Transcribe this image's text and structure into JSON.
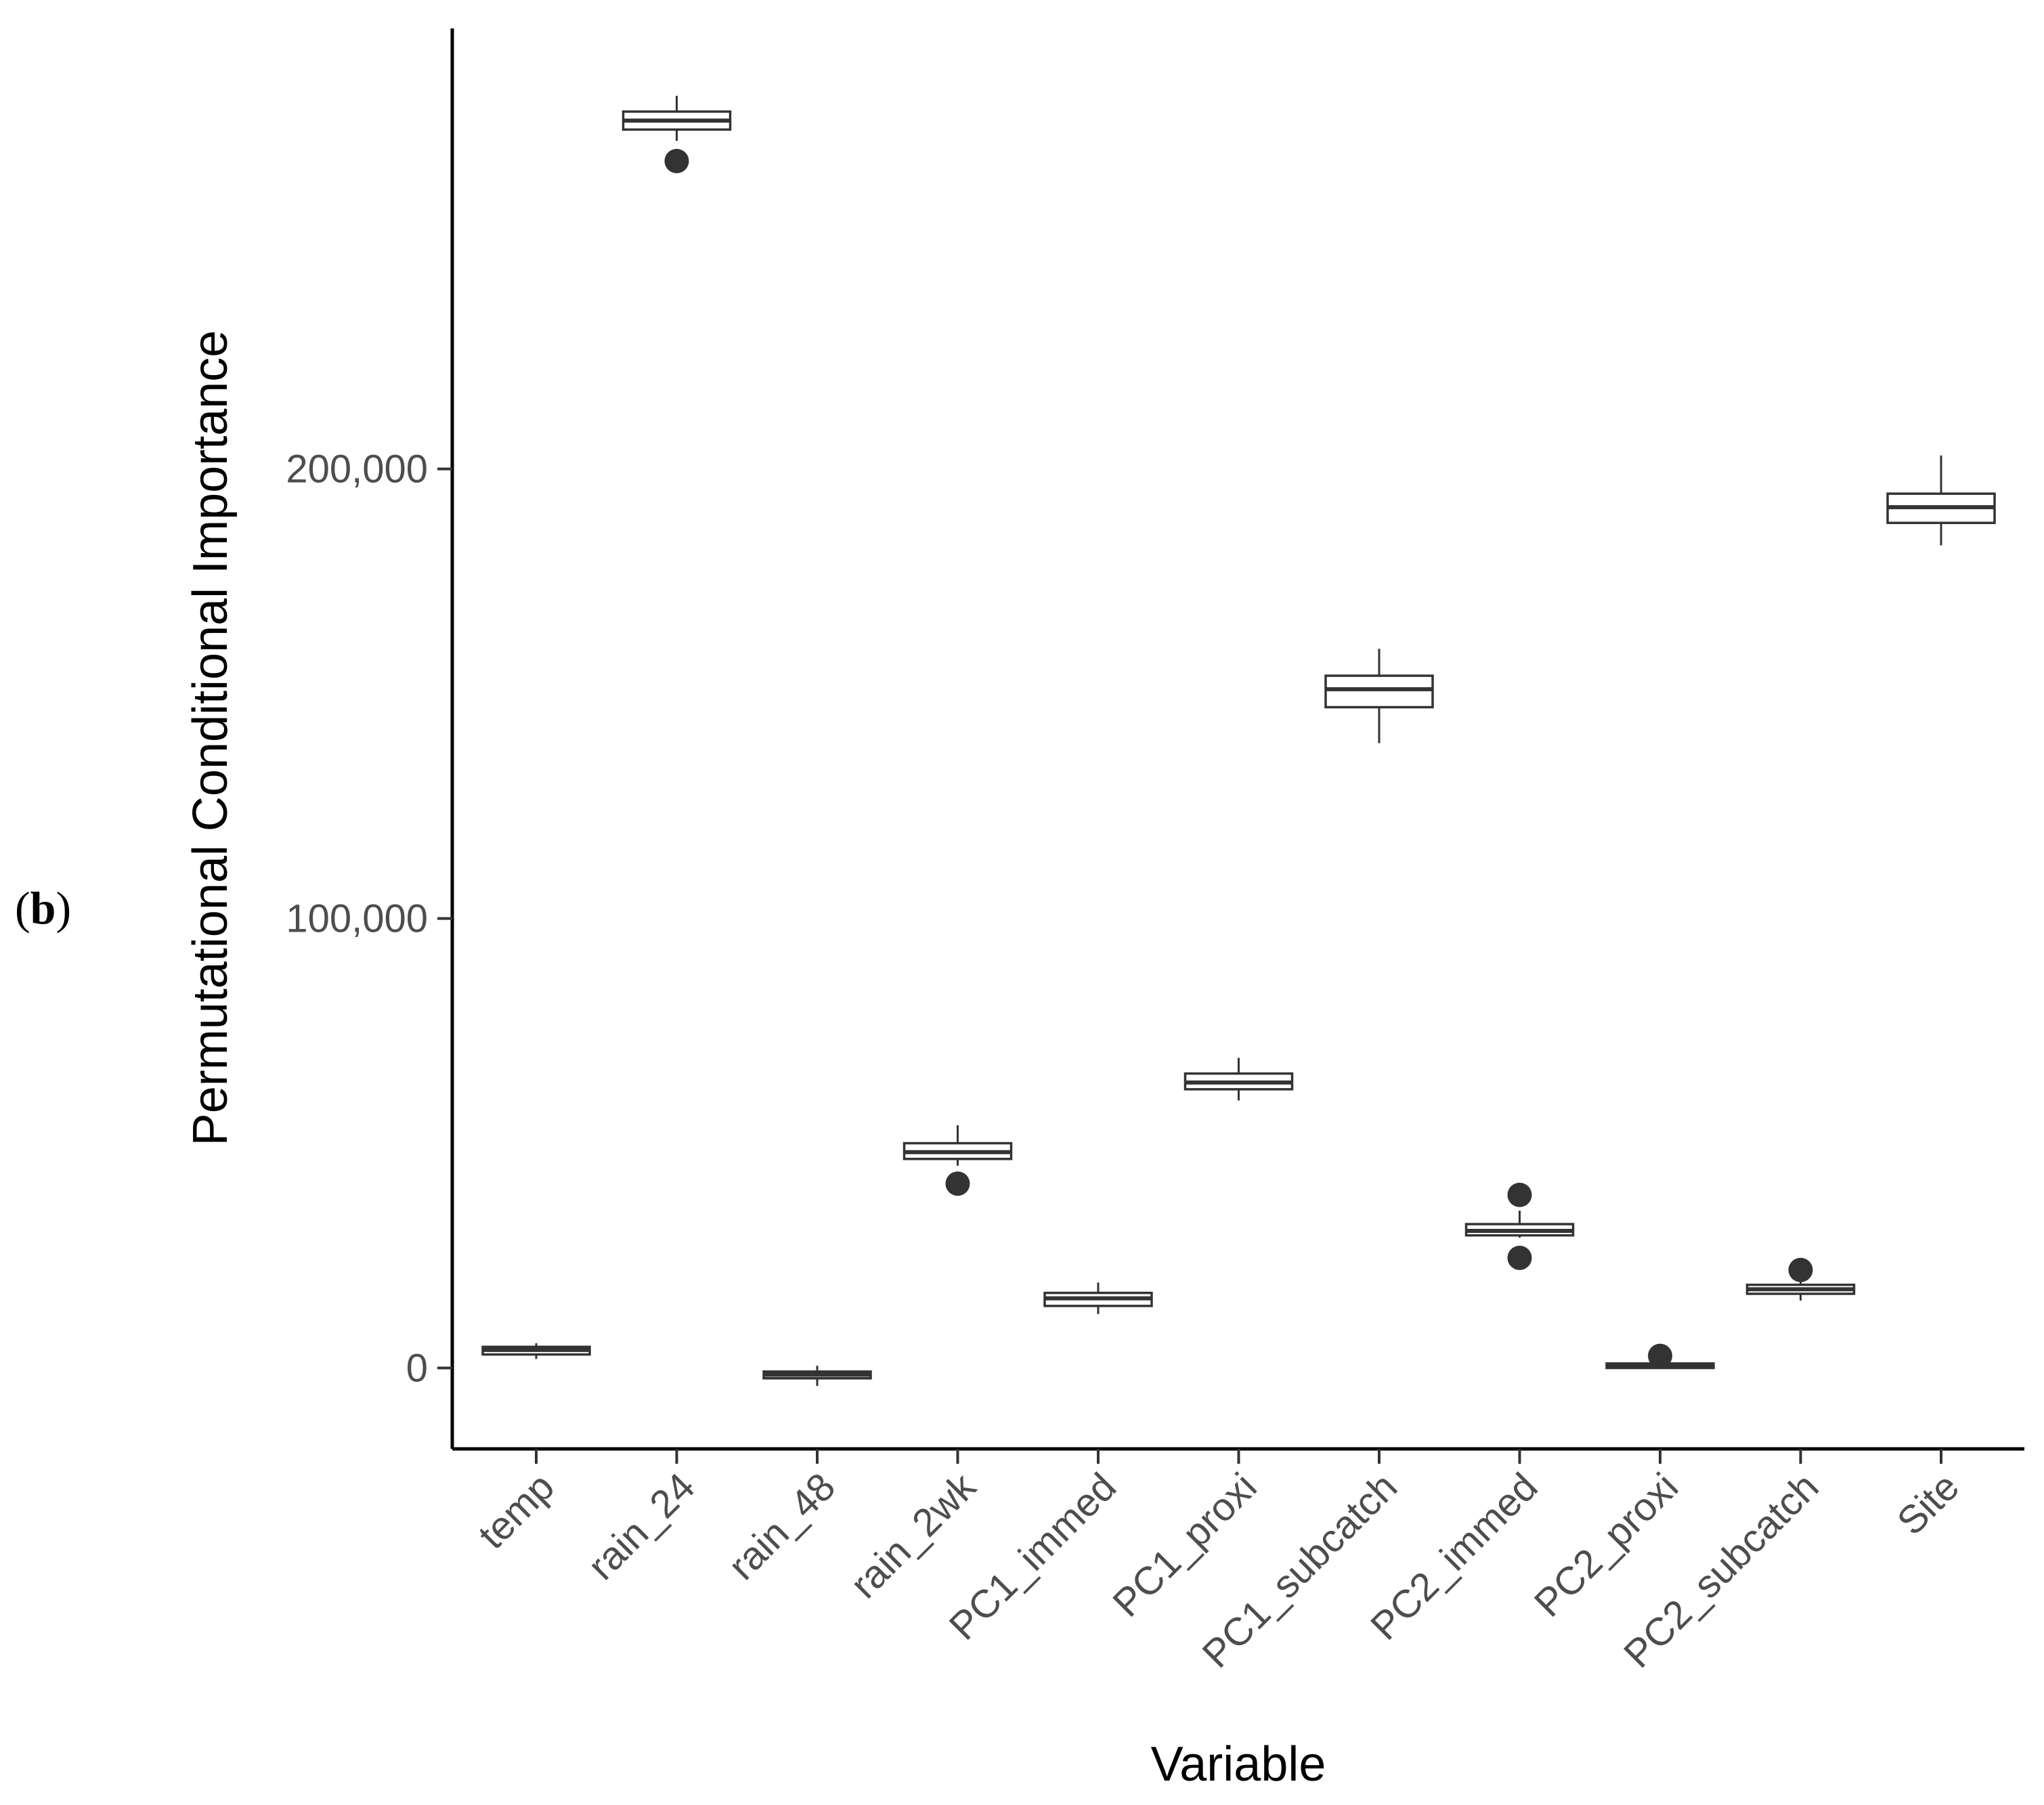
{
  "panel_label": "b",
  "chart_data": {
    "type": "boxplot",
    "xlabel": "Variable",
    "ylabel": "Permutational Conditional Importance",
    "ylim": [
      -18000,
      298000
    ],
    "yticks": [
      0,
      100000,
      200000
    ],
    "ytick_labels": [
      "0",
      "100,000",
      "200,000"
    ],
    "categories": [
      "temp",
      "rain_24",
      "rain_48",
      "rain_2wk",
      "PC1_immed",
      "PC1_proxi",
      "PC1_subcatch",
      "PC2_immed",
      "PC2_proxi",
      "PC2_subcatch",
      "Site"
    ],
    "boxes": [
      {
        "name": "temp",
        "whisker_low": 2000,
        "q1": 3000,
        "median": 4000,
        "q3": 4700,
        "whisker_high": 5500,
        "outliers": []
      },
      {
        "name": "rain_24",
        "whisker_low": 273000,
        "q1": 275500,
        "median": 277500,
        "q3": 279500,
        "whisker_high": 283000,
        "outliers": [
          268500
        ]
      },
      {
        "name": "rain_48",
        "whisker_low": -4000,
        "q1": -2300,
        "median": -1500,
        "q3": -800,
        "whisker_high": 500,
        "outliers": []
      },
      {
        "name": "rain_2wk",
        "whisker_low": 45000,
        "q1": 46500,
        "median": 48000,
        "q3": 50000,
        "whisker_high": 54000,
        "outliers": [
          41000
        ]
      },
      {
        "name": "PC1_immed",
        "whisker_low": 12000,
        "q1": 13800,
        "median": 15500,
        "q3": 16700,
        "whisker_high": 19000,
        "outliers": []
      },
      {
        "name": "PC1_proxi",
        "whisker_low": 59500,
        "q1": 62000,
        "median": 63500,
        "q3": 65500,
        "whisker_high": 69000,
        "outliers": []
      },
      {
        "name": "PC1_subcatch",
        "whisker_low": 139000,
        "q1": 147000,
        "median": 151000,
        "q3": 154000,
        "whisker_high": 160000,
        "outliers": []
      },
      {
        "name": "PC2_immed",
        "whisker_low": 29000,
        "q1": 29500,
        "median": 30500,
        "q3": 32000,
        "whisker_high": 35000,
        "outliers": [
          38500,
          24500
        ]
      },
      {
        "name": "PC2_proxi",
        "whisker_low": -200,
        "q1": 0,
        "median": 500,
        "q3": 1000,
        "whisker_high": 1500,
        "outliers": [
          2700
        ]
      },
      {
        "name": "PC2_subcatch",
        "whisker_low": 15000,
        "q1": 16500,
        "median": 17500,
        "q3": 18500,
        "whisker_high": 19500,
        "outliers": [
          21800
        ]
      },
      {
        "name": "Site",
        "whisker_low": 183000,
        "q1": 188000,
        "median": 191500,
        "q3": 194500,
        "whisker_high": 203000,
        "outliers": []
      }
    ]
  }
}
